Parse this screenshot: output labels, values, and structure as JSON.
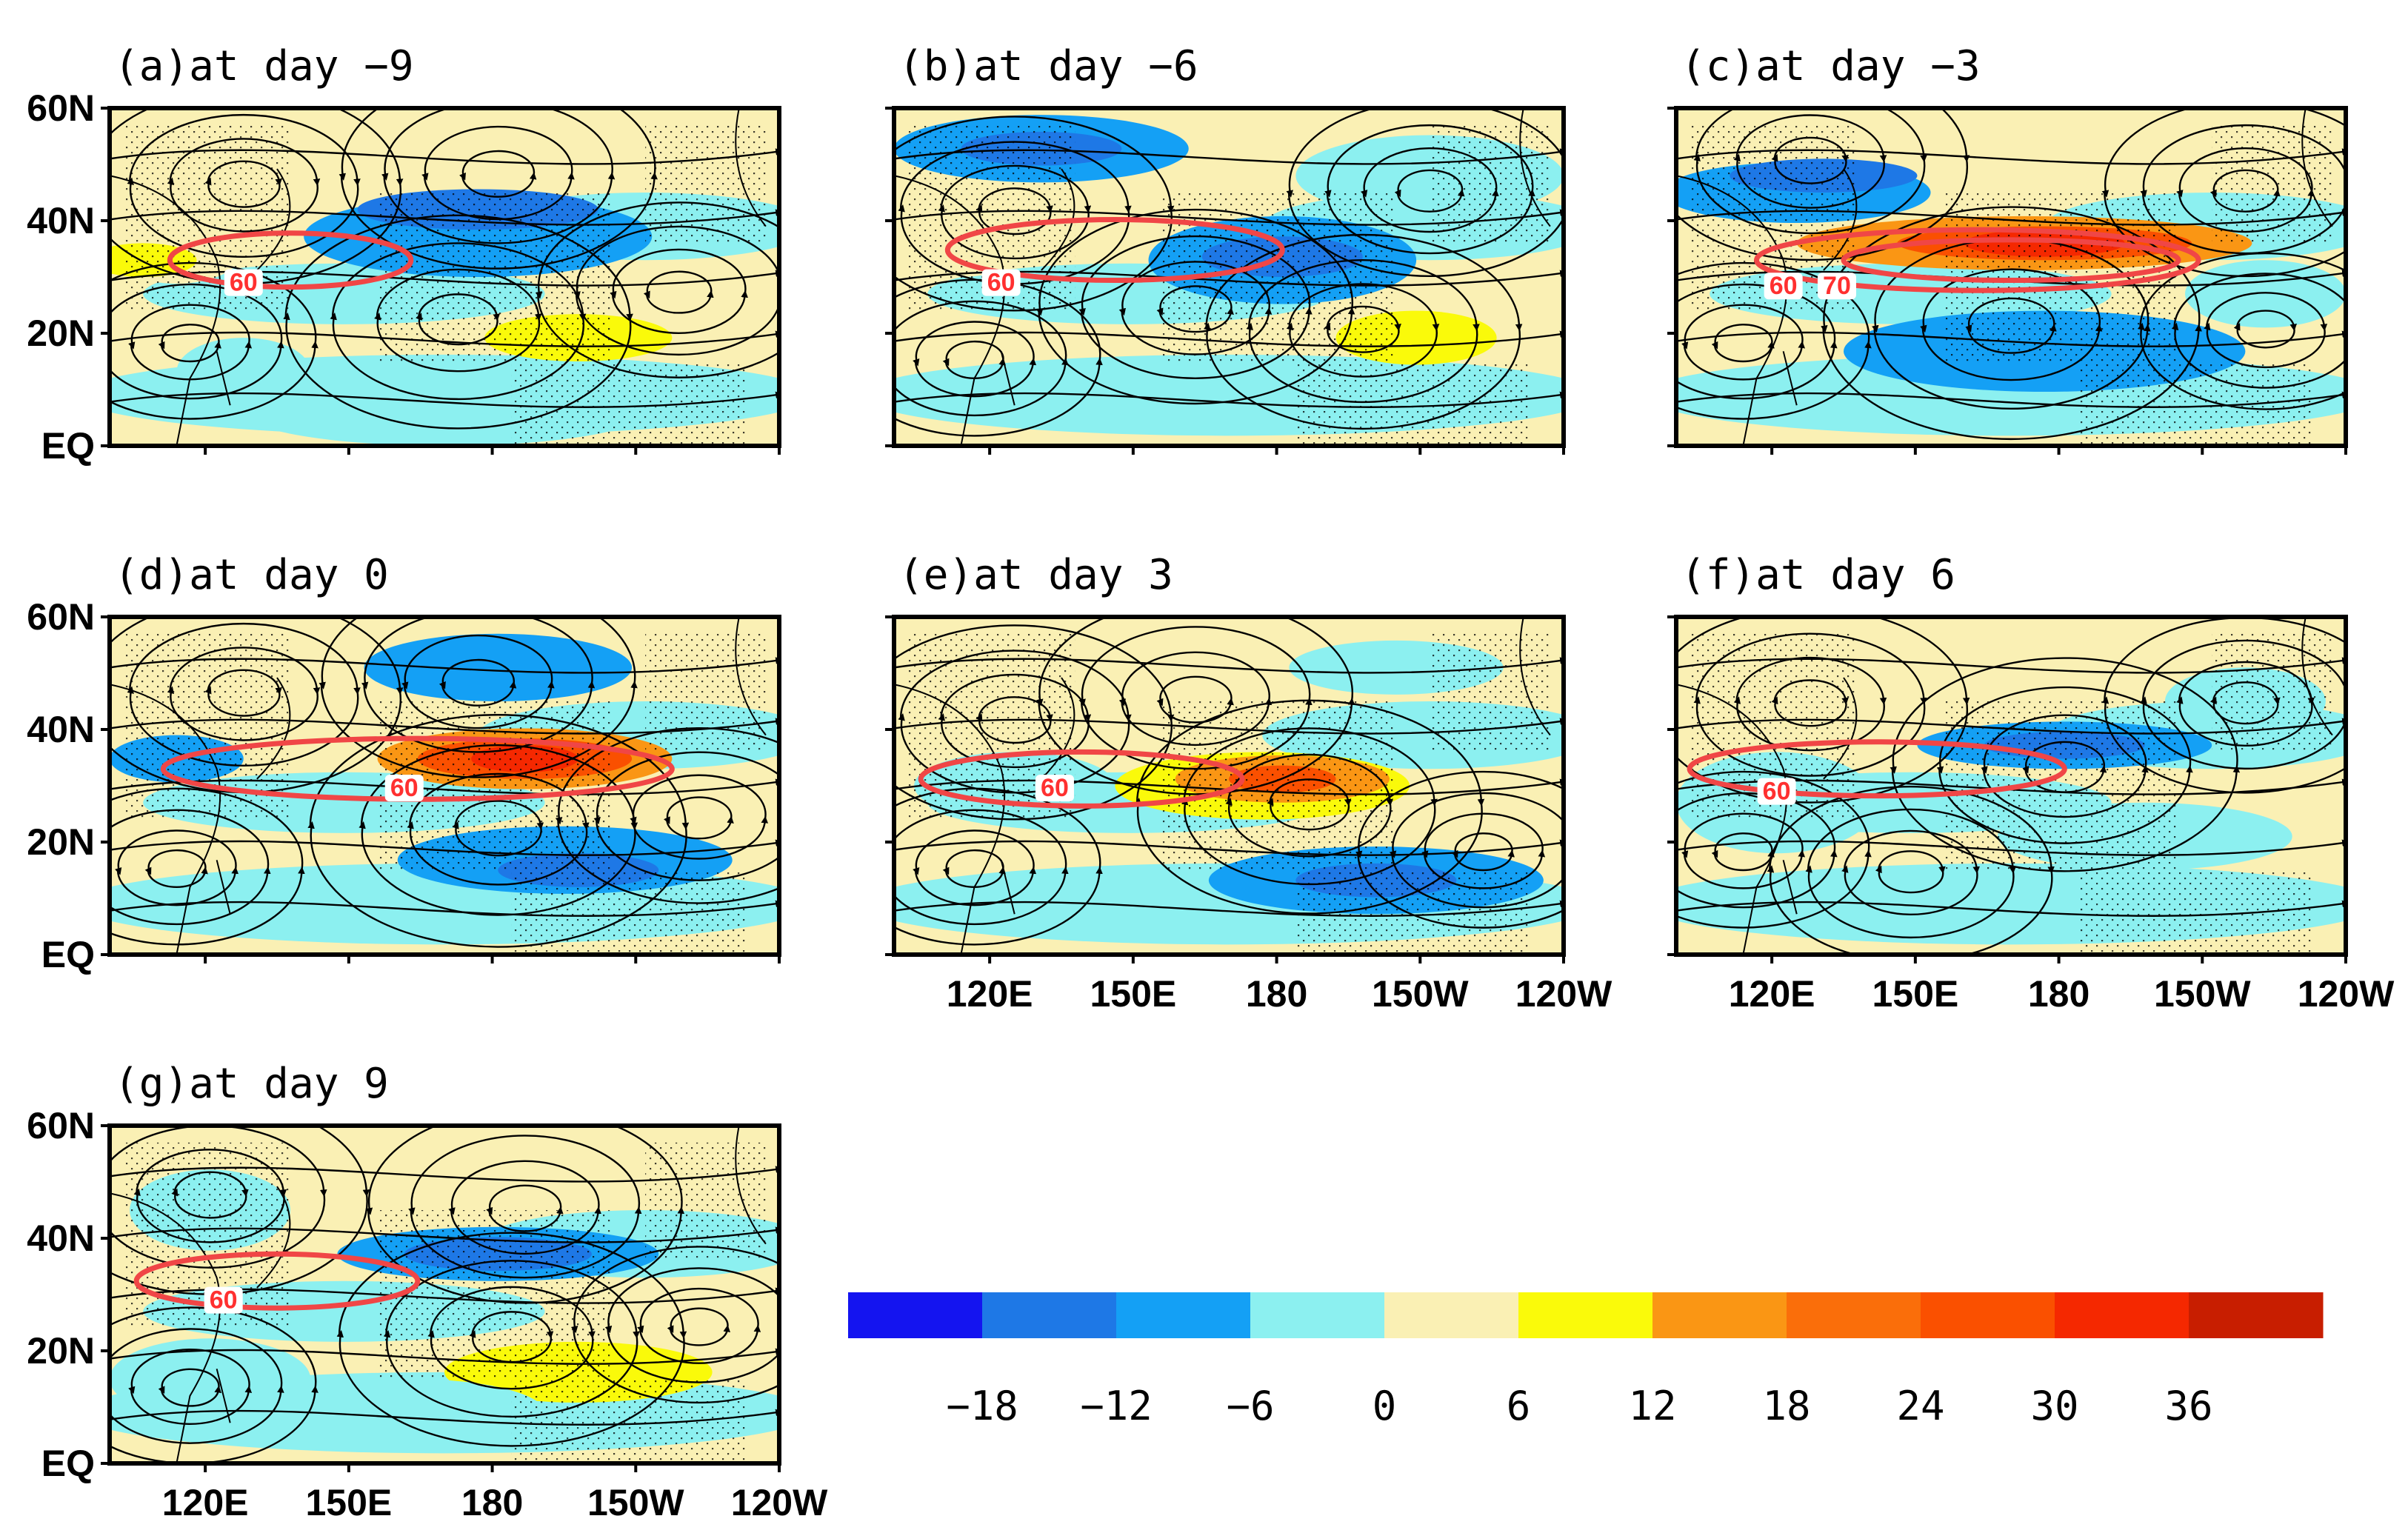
{
  "chart_data": {
    "type": "heatmap",
    "description_hidden": false,
    "panels": [
      {
        "id": "a",
        "title": "(a)at day -9",
        "contour_labels": [
          "60"
        ]
      },
      {
        "id": "b",
        "title": "(b)at day -6",
        "contour_labels": [
          "60"
        ]
      },
      {
        "id": "c",
        "title": "(c)at day -3",
        "contour_labels": [
          "60",
          "70"
        ]
      },
      {
        "id": "d",
        "title": "(d)at day 0",
        "contour_labels": [
          "60"
        ]
      },
      {
        "id": "e",
        "title": "(e)at day 3",
        "contour_labels": [
          "60"
        ]
      },
      {
        "id": "f",
        "title": "(f)at day 6",
        "contour_labels": [
          "60"
        ]
      },
      {
        "id": "g",
        "title": "(g)at day 9",
        "contour_labels": [
          "60"
        ]
      }
    ],
    "y_ticks": [
      "60N",
      "40N",
      "20N",
      "EQ"
    ],
    "x_ticks": [
      "120E",
      "150E",
      "180",
      "150W",
      "120W"
    ],
    "ylim": [
      "EQ",
      "60N"
    ],
    "xlim": [
      "100E",
      "120W"
    ],
    "colorbar": {
      "tick_labels": [
        "-18",
        "-12",
        "-6",
        "0",
        "6",
        "12",
        "18",
        "24",
        "30",
        "36"
      ],
      "colors": [
        "#1414f0",
        "#1e78e6",
        "#14a0f5",
        "#8cf0f0",
        "#faf0b4",
        "#fafa0a",
        "#fa9614",
        "#fa6e0a",
        "#fa5000",
        "#f52800",
        "#c81e00"
      ]
    },
    "contour_color": "#f04646"
  }
}
